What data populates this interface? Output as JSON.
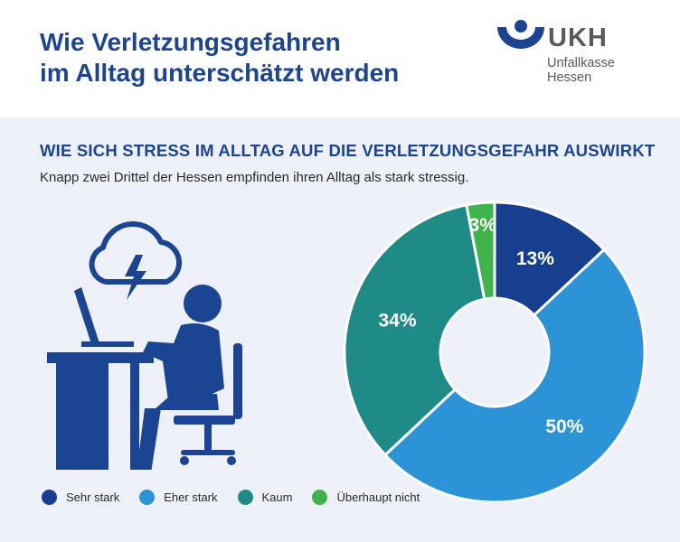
{
  "header": {
    "title_line1": "Wie Verletzungsgefahren",
    "title_line2": "im Alltag unterschätzt werden",
    "logo": {
      "name": "UKH",
      "subtitle": "Unfallkasse Hessen"
    }
  },
  "section": {
    "title": "WIE SICH STRESS IM ALLTAG AUF DIE VERLETZUNGSGEFAHR AUSWIRKT",
    "subtitle": "Knapp zwei Drittel der Hessen empfinden ihren Alltag als stark stressig."
  },
  "colors": {
    "primary": "#1b4592",
    "sehr_stark": "#163f8f",
    "eher_stark": "#2b93d6",
    "kaum": "#1f8b86",
    "ueberhaupt_nicht": "#3db34a",
    "icon": "#1b4592"
  },
  "illustration": {
    "icon": "stressed-person-at-desk-with-lightning-cloud-icon"
  },
  "chart_data": {
    "type": "pie",
    "donut": true,
    "categories": [
      "Sehr stark",
      "Eher stark",
      "Kaum",
      "Überhaupt nicht"
    ],
    "values": [
      13,
      50,
      34,
      3
    ],
    "labels": [
      "13%",
      "50%",
      "34%",
      "3%"
    ],
    "colors": [
      "#163f8f",
      "#2b93d6",
      "#1f8b86",
      "#3db34a"
    ],
    "legend_position": "bottom"
  }
}
